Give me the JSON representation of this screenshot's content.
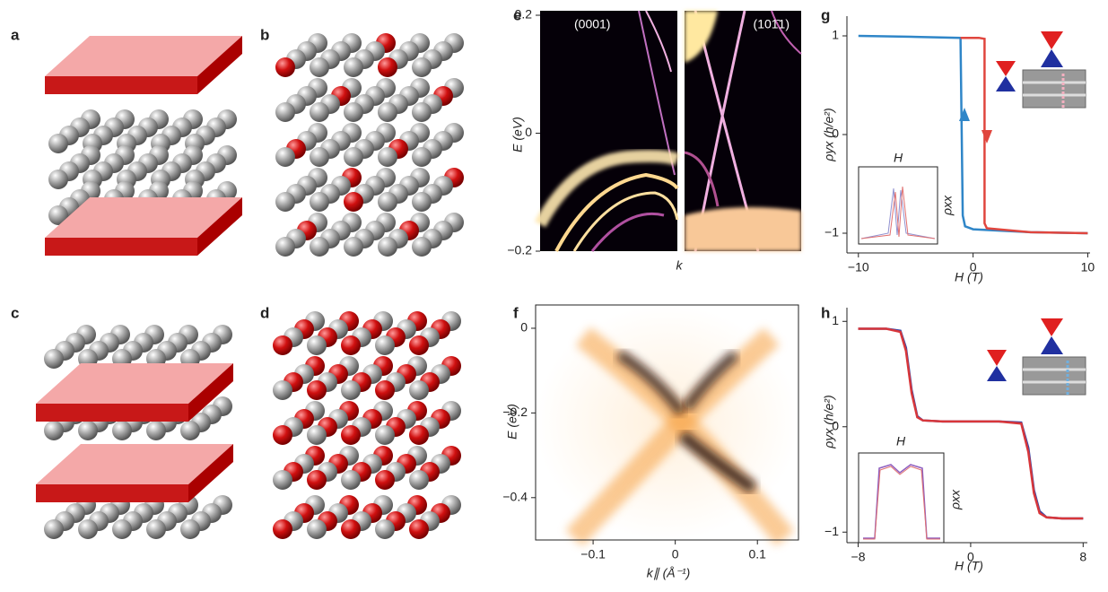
{
  "panel_labels": [
    "a",
    "b",
    "c",
    "d",
    "e",
    "f",
    "g",
    "h"
  ],
  "chart_data": [
    {
      "type": "heatmap",
      "xlabel": "k",
      "ylabel": "E (eV)",
      "annotations": [
        "(0001)",
        "(101̄1)"
      ],
      "ylim": [
        -0.2,
        0.2
      ],
      "yticks": [
        {
          "value": -0.2,
          "label": "−0.2"
        },
        0,
        0.2
      ]
    },
    {
      "type": "heatmap",
      "xlabel": "k∥ (Å⁻¹)",
      "ylabel": "E (eV)",
      "xlim": [
        -0.17,
        0.15
      ],
      "xticks": [
        {
          "value": -0.1,
          "label": "−0.1"
        },
        0,
        0.1
      ],
      "ylim": [
        -0.5,
        0.055
      ],
      "yticks": [
        {
          "value": -0.4,
          "label": "−0.4"
        },
        {
          "value": -0.2,
          "label": "−0.2"
        },
        0
      ]
    },
    {
      "type": "line",
      "xlabel": "H (T)",
      "ylabel": "ρyx (h/e²)",
      "inset_labels": [
        "H",
        "ρxx"
      ],
      "xlim": [
        -11,
        10.2
      ],
      "xticks": [
        {
          "value": -10,
          "label": "−10"
        },
        0,
        10
      ],
      "ylim": [
        -1.2,
        1.2
      ],
      "yticks": [
        {
          "value": -1,
          "label": "−1"
        },
        0,
        1
      ],
      "series": [
        {
          "color": "#2f86c8",
          "x": [
            -10,
            -5,
            -1.1,
            -0.9,
            -0.7,
            0,
            5,
            10
          ],
          "values": [
            1.0,
            0.99,
            0.98,
            -0.82,
            -0.93,
            -0.96,
            -0.99,
            -1.0
          ]
        },
        {
          "color": "#e0463e",
          "x": [
            -1.1,
            0.5,
            1.0,
            1.0,
            1.2,
            5,
            10
          ],
          "values": [
            0.98,
            0.98,
            0.97,
            -0.9,
            -0.95,
            -0.99,
            -1.0
          ]
        }
      ]
    },
    {
      "type": "line",
      "xlabel": "H (T)",
      "ylabel": "ρyx (h/e²)",
      "inset_labels": [
        "H",
        "ρxx"
      ],
      "xlim": [
        -8.8,
        8.3
      ],
      "xticks": [
        {
          "value": -8,
          "label": "−8"
        },
        0,
        8
      ],
      "ylim": [
        -1.1,
        1.13
      ],
      "yticks": [
        {
          "value": -1,
          "label": "−1"
        },
        0,
        1
      ],
      "series": [
        {
          "color": "#3848a8",
          "x": [
            -8,
            -6,
            -5,
            -4.6,
            -4.2,
            -3.8,
            -3.4,
            -2,
            0,
            2,
            3.6,
            4.1,
            4.5,
            4.9,
            5.4,
            6.5,
            8
          ],
          "values": [
            0.93,
            0.93,
            0.91,
            0.75,
            0.35,
            0.1,
            0.06,
            0.05,
            0.05,
            0.05,
            0.04,
            -0.2,
            -0.6,
            -0.8,
            -0.86,
            -0.87,
            -0.87
          ]
        },
        {
          "color": "#d8363a",
          "x": [
            -8,
            -6,
            -5,
            -4.6,
            -4.2,
            -3.8,
            -3.4,
            -2,
            0,
            2,
            3.6,
            4.1,
            4.5,
            4.9,
            5.4,
            6.5,
            8
          ],
          "values": [
            0.93,
            0.93,
            0.9,
            0.72,
            0.32,
            0.09,
            0.06,
            0.05,
            0.05,
            0.05,
            0.03,
            -0.24,
            -0.63,
            -0.82,
            -0.86,
            -0.87,
            -0.87
          ]
        }
      ]
    }
  ]
}
